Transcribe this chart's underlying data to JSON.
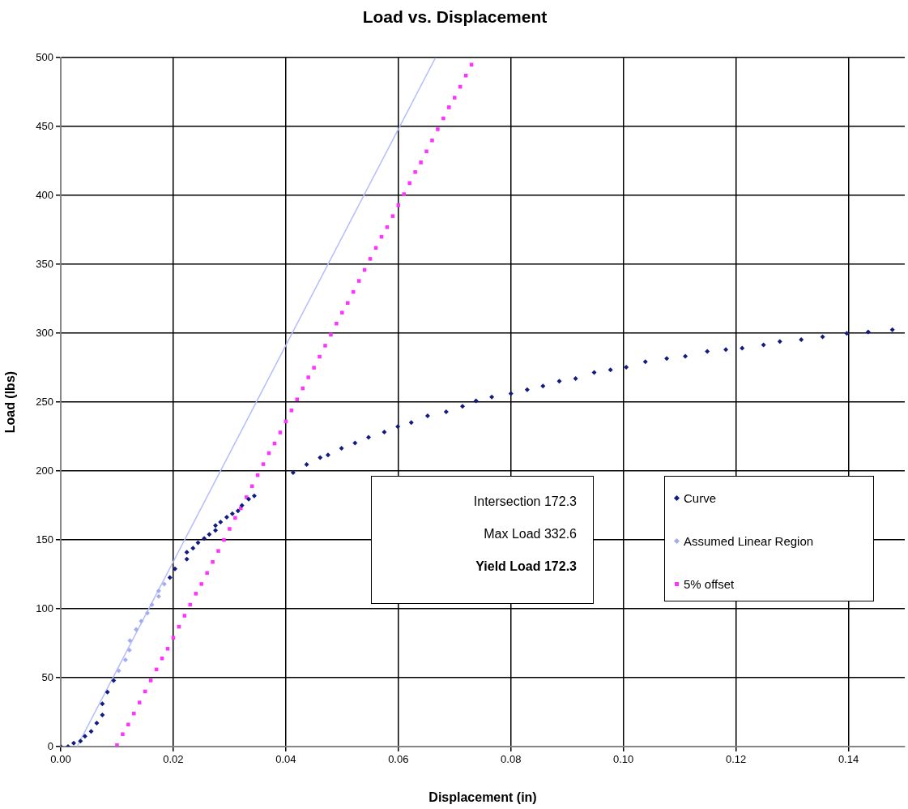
{
  "chart_data": {
    "type": "scatter",
    "title": "Load vs. Displacement",
    "xlabel": "Displacement (in)",
    "ylabel": "Load (lbs)",
    "xlim": [
      0,
      0.15
    ],
    "xticks": [
      {
        "value": 0,
        "label": "0.00"
      },
      {
        "value": 0.02,
        "label": "0.02"
      },
      {
        "value": 0.04,
        "label": "0.04"
      },
      {
        "value": 0.06,
        "label": "0.06"
      },
      {
        "value": 0.08,
        "label": "0.08"
      },
      {
        "value": 0.1,
        "label": "0.10"
      },
      {
        "value": 0.12,
        "label": "0.12"
      },
      {
        "value": 0.14,
        "label": "0.14"
      }
    ],
    "ylim": [
      0,
      500
    ],
    "yticks": [
      0,
      50,
      100,
      150,
      200,
      250,
      300,
      350,
      400,
      450,
      500
    ],
    "grid": true,
    "legend": "bottom right",
    "annotations": [
      "Intersection 172.3",
      "Max Load 332.6",
      "Yield Load 172.3"
    ],
    "series": [
      {
        "name": "Curve",
        "marker": "diamond",
        "color": "#101c80",
        "x": [
          0,
          0.0013,
          0.0023,
          0.0035,
          0.0043,
          0.0054,
          0.0064,
          0.0074,
          0.0074,
          0.0083,
          0.0094,
          0.0194,
          0.0203,
          0.0224,
          0.0224,
          0.0235,
          0.0244,
          0.0255,
          0.0264,
          0.0275,
          0.0275,
          0.0284,
          0.0295,
          0.0305,
          0.0315,
          0.0322,
          0.0334,
          0.0344,
          0.0413,
          0.0437,
          0.0461,
          0.0475,
          0.0499,
          0.0523,
          0.0547,
          0.0575,
          0.0599,
          0.0623,
          0.0652,
          0.0685,
          0.0714,
          0.0738,
          0.0766,
          0.08,
          0.0829,
          0.0857,
          0.0886,
          0.0915,
          0.0948,
          0.0977,
          0.1005,
          0.1039,
          0.1077,
          0.111,
          0.1149,
          0.1182,
          0.1211,
          0.1249,
          0.1278,
          0.1316,
          0.1354,
          0.1397,
          0.1435,
          0.1478
        ],
        "values": [
          0,
          0,
          2.5,
          4,
          7.5,
          11,
          17,
          23,
          31,
          39.5,
          48,
          122.7,
          129,
          136,
          141,
          144,
          148,
          151,
          154,
          157,
          160.5,
          163,
          166.5,
          169,
          171,
          175,
          179.6,
          182,
          198.9,
          204.7,
          209.7,
          211.6,
          216.5,
          220.4,
          224.4,
          228.3,
          232.2,
          235.2,
          240.1,
          243,
          247,
          250.9,
          253.8,
          256.2,
          259.1,
          261.7,
          265.2,
          267.1,
          271.5,
          273.4,
          275.4,
          279.3,
          281.7,
          283.3,
          286.8,
          288.2,
          289.2,
          291.5,
          294,
          295.4,
          297.4,
          299.9,
          300.9,
          302.5
        ]
      },
      {
        "name": "Assumed Linear Region",
        "marker": "diamond",
        "color": "#a4acf0",
        "x": [
          0.0103,
          0.0115,
          0.0122,
          0.0123,
          0.0134,
          0.0143,
          0.0154,
          0.0162,
          0.0174,
          0.0174,
          0.0184
        ],
        "values": [
          55,
          63,
          70,
          77,
          85,
          91,
          97,
          103,
          109,
          113,
          118
        ]
      },
      {
        "type": "line",
        "marker": "none",
        "color": "#b4bcff",
        "x": [
          0.0029,
          0.0666
        ],
        "values": [
          0,
          500
        ]
      },
      {
        "name": "5% offset",
        "marker": "square",
        "color": "#ff33ff",
        "x": [
          0.01,
          0.011,
          0.012,
          0.013,
          0.014,
          0.015,
          0.016,
          0.017,
          0.018,
          0.019,
          0.02,
          0.021,
          0.022,
          0.023,
          0.024,
          0.025,
          0.026,
          0.027,
          0.028,
          0.029,
          0.03,
          0.031,
          0.032,
          0.033,
          0.034,
          0.035,
          0.036,
          0.037,
          0.038,
          0.039,
          0.04,
          0.041,
          0.042,
          0.043,
          0.044,
          0.045,
          0.046,
          0.047,
          0.048,
          0.049,
          0.05,
          0.051,
          0.052,
          0.053,
          0.054,
          0.055,
          0.056,
          0.057,
          0.058,
          0.059,
          0.06,
          0.061,
          0.062,
          0.063,
          0.064,
          0.065,
          0.066,
          0.067,
          0.068,
          0.069,
          0.07,
          0.071,
          0.072,
          0.073
        ],
        "values": [
          1,
          9,
          16,
          24,
          32,
          40,
          48,
          56,
          64,
          71,
          79,
          87,
          95,
          103,
          111,
          118,
          126,
          134,
          142,
          150,
          158,
          166,
          173,
          181,
          189,
          197,
          205,
          213,
          220,
          228,
          236,
          244,
          252,
          260,
          268,
          275,
          283,
          291,
          299,
          307,
          315,
          322,
          330,
          338,
          346,
          354,
          362,
          370,
          377,
          385,
          393,
          401,
          409,
          417,
          424,
          432,
          440,
          448,
          456,
          464,
          471,
          479,
          487,
          495
        ]
      }
    ]
  }
}
